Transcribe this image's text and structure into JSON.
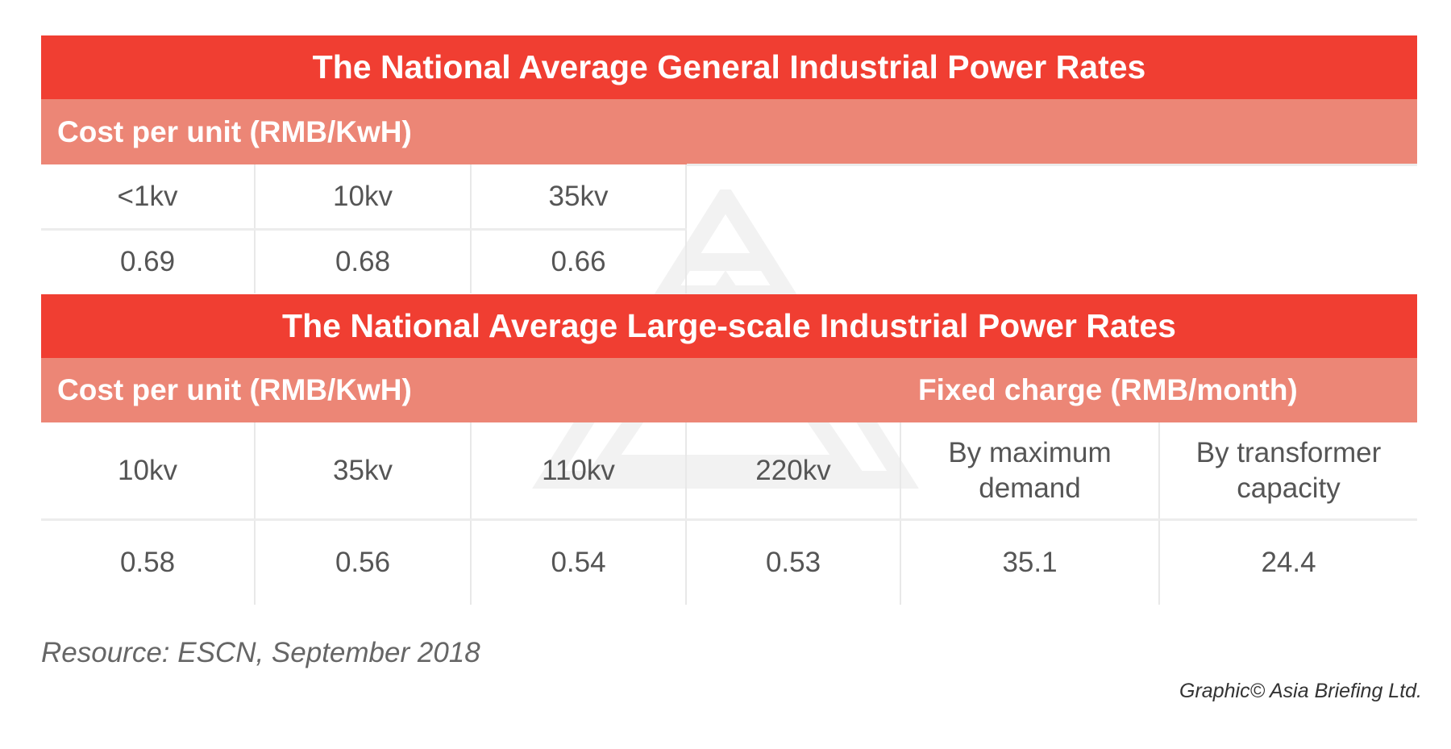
{
  "table1": {
    "title": "The National Average General Industrial Power Rates",
    "subheader": "Cost per unit (RMB/KwH)",
    "columns": [
      "<1kv",
      "10kv",
      "35kv"
    ],
    "values": [
      "0.69",
      "0.68",
      "0.66"
    ]
  },
  "table2": {
    "title": "The National Average Large-scale Industrial Power Rates",
    "subheader_left": "Cost per unit (RMB/KwH)",
    "subheader_right": "Fixed charge (RMB/month)",
    "columns": [
      "10kv",
      "35kv",
      "110kv",
      "220kv",
      "By maximum demand",
      "By transformer capacity"
    ],
    "values": [
      "0.58",
      "0.56",
      "0.54",
      "0.53",
      "35.1",
      "24.4"
    ]
  },
  "footnote": "Resource: ESCN, September 2018",
  "credit": "Graphic© Asia Briefing Ltd.",
  "colors": {
    "title_bg": "#f03e32",
    "subheader_bg": "#ec8676"
  }
}
